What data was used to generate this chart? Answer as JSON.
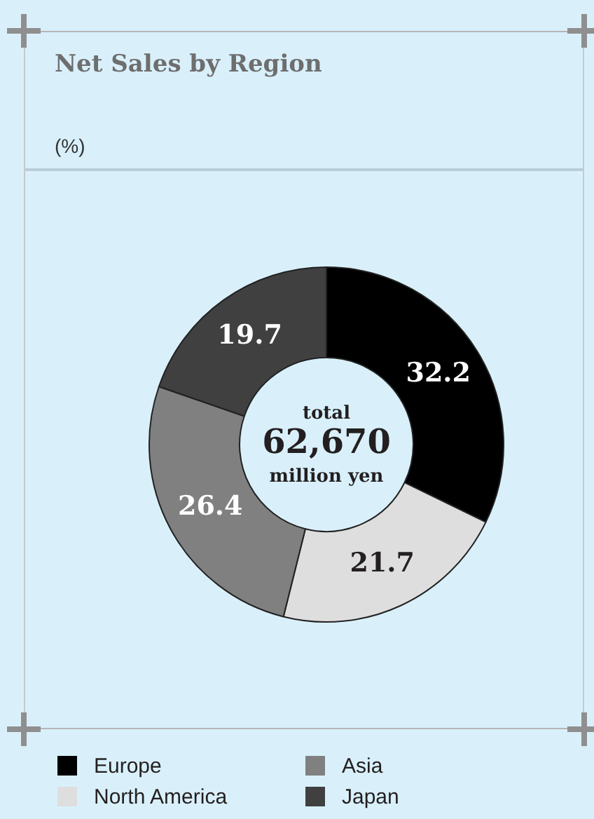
{
  "chart_data": {
    "type": "donut",
    "title": "Net Sales by Region",
    "subtitle": "(%)",
    "categories": [
      "Europe",
      "North America",
      "Asia",
      "Japan"
    ],
    "values": [
      32.2,
      21.7,
      26.4,
      19.7
    ],
    "colors": [
      "#000000",
      "#dedede",
      "#808080",
      "#404040"
    ],
    "data_labels": true,
    "legend": "bottom",
    "annotations": [
      "total",
      "62,670",
      "million yen"
    ]
  }
}
